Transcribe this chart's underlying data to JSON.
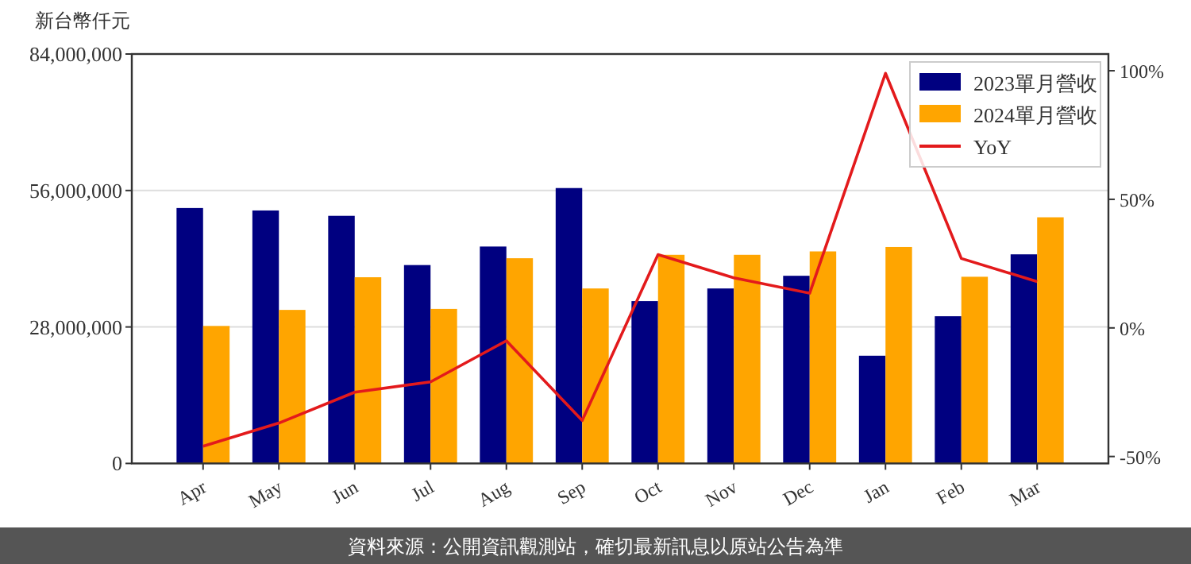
{
  "chart_data": {
    "type": "bar",
    "ylabel": "新台幣仟元",
    "categories": [
      "Apr",
      "May",
      "Jun",
      "Jul",
      "Aug",
      "Sep",
      "Oct",
      "Nov",
      "Dec",
      "Jan",
      "Feb",
      "Mar"
    ],
    "series": [
      {
        "name": "2023單月營收",
        "color": "#000080",
        "values": [
          52400000,
          51900000,
          50800000,
          40700000,
          44500000,
          56500000,
          33300000,
          35900000,
          38500000,
          22100000,
          30200000,
          42900000
        ]
      },
      {
        "name": "2024單月營收",
        "color": "#ffa500",
        "values": [
          28200000,
          31500000,
          38200000,
          31700000,
          42100000,
          35900000,
          42800000,
          42800000,
          43500000,
          44400000,
          38300000,
          50500000
        ]
      },
      {
        "name": "YoY",
        "type": "line",
        "axis": "y2",
        "color": "#e31a1c",
        "values": [
          -46,
          -37,
          -25,
          -21,
          -5,
          -36,
          28.5,
          19.5,
          13.5,
          99,
          27,
          18
        ]
      }
    ],
    "ylim": [
      0,
      84000000
    ],
    "yticks": [
      {
        "value": 0,
        "label": "0"
      },
      {
        "value": 28000000,
        "label": "28,000,000"
      },
      {
        "value": 56000000,
        "label": "56,000,000"
      },
      {
        "value": 84000000,
        "label": "84,000,000"
      }
    ],
    "y2lim": [
      -52.7,
      106.5
    ],
    "y2ticks": [
      {
        "value": -50,
        "label": "-50%"
      },
      {
        "value": 0,
        "label": "0%"
      },
      {
        "value": 50,
        "label": "50%"
      },
      {
        "value": 100,
        "label": "100%"
      }
    ],
    "grid": "y",
    "legend": "top right",
    "marker": "none",
    "line_style": "solid",
    "annotations": [
      "資料來源：公開資訊觀測站，確切最新訊息以原站公告為準"
    ]
  }
}
